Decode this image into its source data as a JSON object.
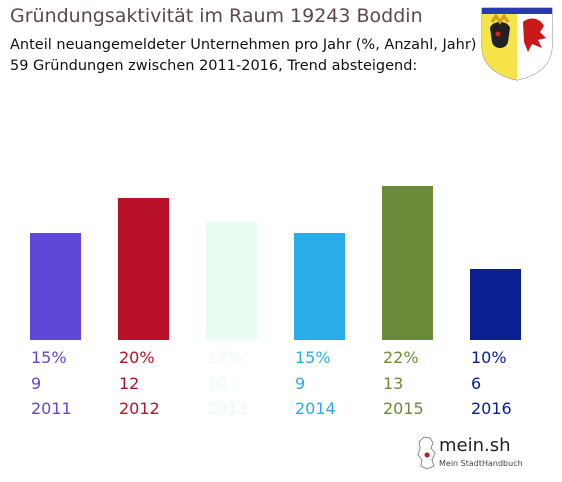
{
  "title": "Gründungsaktivität im Raum 19243 Boddin",
  "subtitle_line1": "Anteil neuangemeldeter Unternehmen pro Jahr (%, Anzahl, Jahr)",
  "subtitle_line2": "59 Gründungen zwischen 2011-2016, Trend absteigend:",
  "logo": {
    "name": "mein.sh",
    "tagline": "Mein StadtHandbuch"
  },
  "chart_data": {
    "type": "bar",
    "categories": [
      "2011",
      "2012",
      "2013",
      "2014",
      "2015",
      "2016"
    ],
    "percent_labels": [
      "15%",
      "20%",
      "17%",
      "15%",
      "22%",
      "10%"
    ],
    "count_labels": [
      "9",
      "12",
      "10",
      "9",
      "13",
      "6"
    ],
    "values": [
      9,
      12,
      10,
      9,
      13,
      6
    ],
    "colors": [
      "#5f48d8",
      "#b81028",
      "#e9fcf2",
      "#2aace8",
      "#6a8c3a",
      "#0a2090"
    ],
    "total": 59,
    "grid": false,
    "legend": "none"
  }
}
